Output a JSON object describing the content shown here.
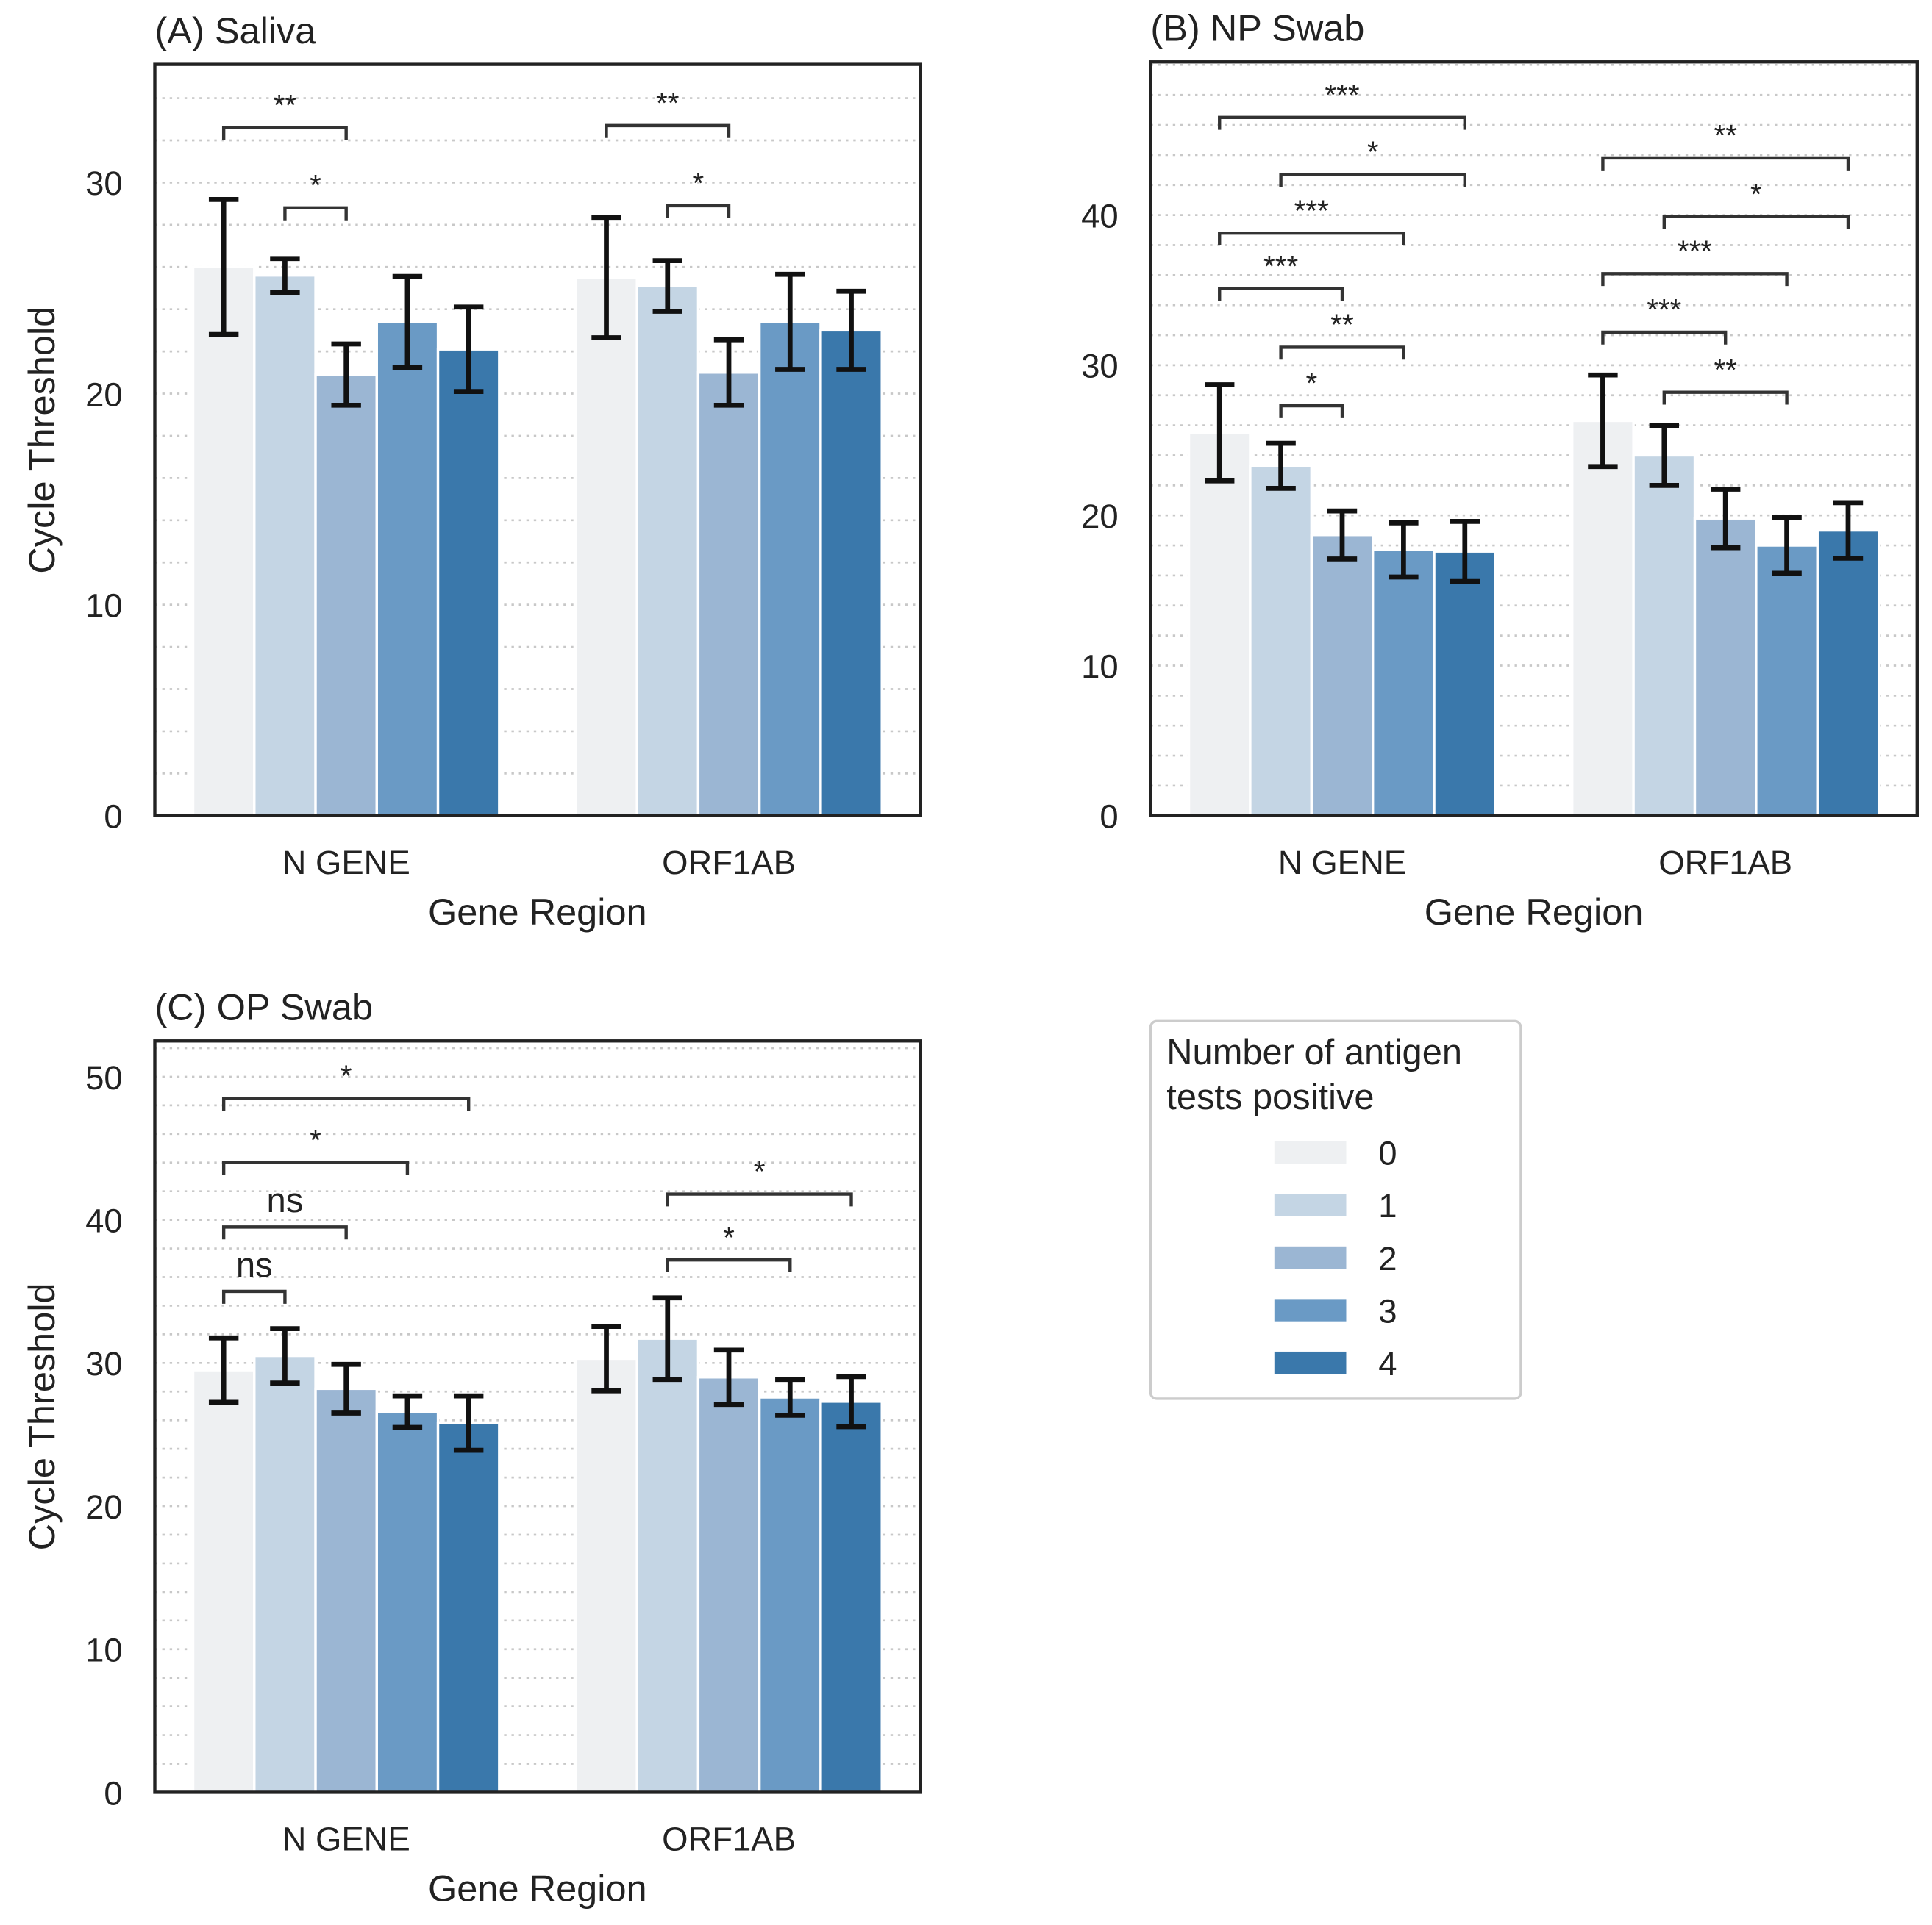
{
  "chart_data": [
    {
      "type": "bar",
      "title": "(A) Saliva",
      "xlabel": "Gene Region",
      "ylabel": "Cycle Threshold",
      "categories": [
        "N GENE",
        "ORF1AB"
      ],
      "series": [
        {
          "name": "0",
          "color": "#eef0f2",
          "values": [
            26.0,
            25.5
          ],
          "errors": [
            3.2,
            2.85
          ]
        },
        {
          "name": "1",
          "color": "#c4d5e4",
          "values": [
            25.6,
            25.1
          ],
          "errors": [
            0.8,
            1.2
          ]
        },
        {
          "name": "2",
          "color": "#9bb6d3",
          "values": [
            20.9,
            21.0
          ],
          "errors": [
            1.45,
            1.55
          ]
        },
        {
          "name": "3",
          "color": "#6a9ac5",
          "values": [
            23.4,
            23.4
          ],
          "errors": [
            2.15,
            2.25
          ]
        },
        {
          "name": "4",
          "color": "#3a78ab",
          "values": [
            22.1,
            23.0
          ],
          "errors": [
            2.0,
            1.85
          ]
        }
      ],
      "ylim": [
        0,
        35.6
      ],
      "yticks": [
        0,
        10,
        20,
        30
      ],
      "grid_yticks": [
        0,
        2,
        4,
        6,
        8,
        10,
        12,
        14,
        16,
        18,
        20,
        22,
        24,
        26,
        28,
        30,
        32,
        34
      ],
      "annotations": [
        {
          "group": 0,
          "pair": [
            0,
            2
          ],
          "y": 32.6,
          "label": "**"
        },
        {
          "group": 0,
          "pair": [
            1,
            2
          ],
          "y": 28.8,
          "label": "*"
        },
        {
          "group": 1,
          "pair": [
            0,
            2
          ],
          "y": 32.7,
          "label": "**"
        },
        {
          "group": 1,
          "pair": [
            1,
            2
          ],
          "y": 28.9,
          "label": "*"
        }
      ]
    },
    {
      "type": "bar",
      "title": "(B) NP Swab",
      "xlabel": "Gene Region",
      "ylabel": null,
      "categories": [
        "N GENE",
        "ORF1AB"
      ],
      "series": [
        {
          "name": "0",
          "color": "#eef0f2",
          "values": [
            25.5,
            26.3
          ],
          "errors": [
            3.2,
            3.05
          ]
        },
        {
          "name": "1",
          "color": "#c4d5e4",
          "values": [
            23.3,
            24.0
          ],
          "errors": [
            1.5,
            2.0
          ]
        },
        {
          "name": "2",
          "color": "#9bb6d3",
          "values": [
            18.7,
            19.8
          ],
          "errors": [
            1.6,
            1.95
          ]
        },
        {
          "name": "3",
          "color": "#6a9ac5",
          "values": [
            17.7,
            18.0
          ],
          "errors": [
            1.8,
            1.85
          ]
        },
        {
          "name": "4",
          "color": "#3a78ab",
          "values": [
            17.6,
            19.0
          ],
          "errors": [
            2.0,
            1.85
          ]
        }
      ],
      "ylim": [
        0,
        50.2
      ],
      "yticks": [
        0,
        10,
        20,
        30,
        40
      ],
      "grid_yticks": [
        0,
        2,
        4,
        6,
        8,
        10,
        12,
        14,
        16,
        18,
        20,
        22,
        24,
        26,
        28,
        30,
        32,
        34,
        36,
        38,
        40,
        42,
        44,
        46,
        48,
        50
      ],
      "annotations": [
        {
          "group": 0,
          "pair": [
            0,
            4
          ],
          "y": 46.5,
          "label": "***"
        },
        {
          "group": 0,
          "pair": [
            1,
            4
          ],
          "y": 42.7,
          "label": "*"
        },
        {
          "group": 0,
          "pair": [
            0,
            3
          ],
          "y": 38.8,
          "label": "***"
        },
        {
          "group": 0,
          "pair": [
            0,
            2
          ],
          "y": 35.1,
          "label": "***"
        },
        {
          "group": 0,
          "pair": [
            1,
            3
          ],
          "y": 31.2,
          "label": "**"
        },
        {
          "group": 0,
          "pair": [
            1,
            2
          ],
          "y": 27.3,
          "label": "*"
        },
        {
          "group": 1,
          "pair": [
            0,
            4
          ],
          "y": 43.8,
          "label": "**"
        },
        {
          "group": 1,
          "pair": [
            1,
            4
          ],
          "y": 39.9,
          "label": "*"
        },
        {
          "group": 1,
          "pair": [
            0,
            3
          ],
          "y": 36.1,
          "label": "***"
        },
        {
          "group": 1,
          "pair": [
            0,
            2
          ],
          "y": 32.2,
          "label": "***"
        },
        {
          "group": 1,
          "pair": [
            1,
            3
          ],
          "y": 28.2,
          "label": "**"
        }
      ]
    },
    {
      "type": "bar",
      "title": "(C) OP Swab",
      "xlabel": "Gene Region",
      "ylabel": "Cycle Threshold",
      "categories": [
        "N GENE",
        "ORF1AB"
      ],
      "series": [
        {
          "name": "0",
          "color": "#eef0f2",
          "values": [
            29.5,
            30.3
          ],
          "errors": [
            2.25,
            2.25
          ]
        },
        {
          "name": "1",
          "color": "#c4d5e4",
          "values": [
            30.5,
            31.7
          ],
          "errors": [
            1.9,
            2.85
          ]
        },
        {
          "name": "2",
          "color": "#9bb6d3",
          "values": [
            28.2,
            29.0
          ],
          "errors": [
            1.7,
            1.9
          ]
        },
        {
          "name": "3",
          "color": "#6a9ac5",
          "values": [
            26.6,
            27.6
          ],
          "errors": [
            1.1,
            1.25
          ]
        },
        {
          "name": "4",
          "color": "#3a78ab",
          "values": [
            25.8,
            27.3
          ],
          "errors": [
            1.9,
            1.75
          ]
        }
      ],
      "ylim": [
        0,
        52.5
      ],
      "yticks": [
        0,
        10,
        20,
        30,
        40,
        50
      ],
      "grid_yticks": [
        0,
        2,
        4,
        6,
        8,
        10,
        12,
        14,
        16,
        18,
        20,
        22,
        24,
        26,
        28,
        30,
        32,
        34,
        36,
        38,
        40,
        42,
        44,
        46,
        48,
        50,
        52
      ],
      "annotations": [
        {
          "group": 0,
          "pair": [
            0,
            4
          ],
          "y": 48.5,
          "label": "*"
        },
        {
          "group": 0,
          "pair": [
            0,
            3
          ],
          "y": 44.0,
          "label": "*"
        },
        {
          "group": 0,
          "pair": [
            0,
            2
          ],
          "y": 39.5,
          "label": "ns"
        },
        {
          "group": 0,
          "pair": [
            0,
            1
          ],
          "y": 35.0,
          "label": "ns"
        },
        {
          "group": 1,
          "pair": [
            1,
            4
          ],
          "y": 41.8,
          "label": "*"
        },
        {
          "group": 1,
          "pair": [
            1,
            3
          ],
          "y": 37.2,
          "label": "*"
        }
      ]
    }
  ],
  "legend": {
    "title_lines": [
      "Number of antigen",
      "tests positive"
    ]
  }
}
